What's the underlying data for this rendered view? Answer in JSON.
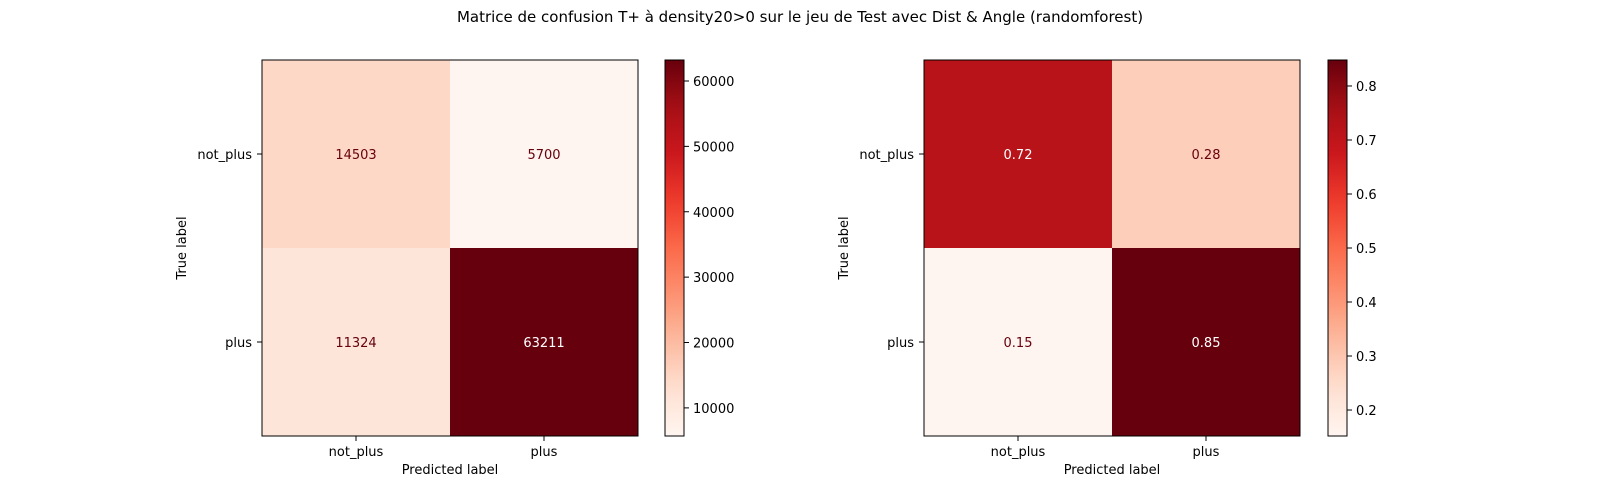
{
  "figure": {
    "title": "Matrice de confusion T+ à density20>0 sur le jeu de Test avec Dist & Angle (randomforest)"
  },
  "chart_data": [
    {
      "type": "heatmap",
      "xlabel": "Predicted label",
      "ylabel": "True label",
      "x_categories": [
        "not_plus",
        "plus"
      ],
      "y_categories": [
        "not_plus",
        "plus"
      ],
      "values": [
        [
          14503,
          5700
        ],
        [
          11324,
          63211
        ]
      ],
      "value_labels": [
        [
          "14503",
          "5700"
        ],
        [
          "11324",
          "63211"
        ]
      ],
      "colormap": "Reds",
      "colorbar": {
        "range": [
          5700,
          63211
        ],
        "ticks": [
          10000,
          20000,
          30000,
          40000,
          50000,
          60000
        ],
        "tick_labels": [
          "10000",
          "20000",
          "30000",
          "40000",
          "50000",
          "60000"
        ]
      }
    },
    {
      "type": "heatmap",
      "xlabel": "Predicted label",
      "ylabel": "True label",
      "x_categories": [
        "not_plus",
        "plus"
      ],
      "y_categories": [
        "not_plus",
        "plus"
      ],
      "values": [
        [
          0.7178,
          0.2822
        ],
        [
          0.1519,
          0.8481
        ]
      ],
      "value_labels": [
        [
          "0.72",
          "0.28"
        ],
        [
          "0.15",
          "0.85"
        ]
      ],
      "colormap": "Reds",
      "colorbar": {
        "range": [
          0.1519,
          0.8481
        ],
        "ticks": [
          0.2,
          0.3,
          0.4,
          0.5,
          0.6,
          0.7,
          0.8
        ],
        "tick_labels": [
          "0.2",
          "0.3",
          "0.4",
          "0.5",
          "0.6",
          "0.7",
          "0.8"
        ]
      }
    }
  ]
}
